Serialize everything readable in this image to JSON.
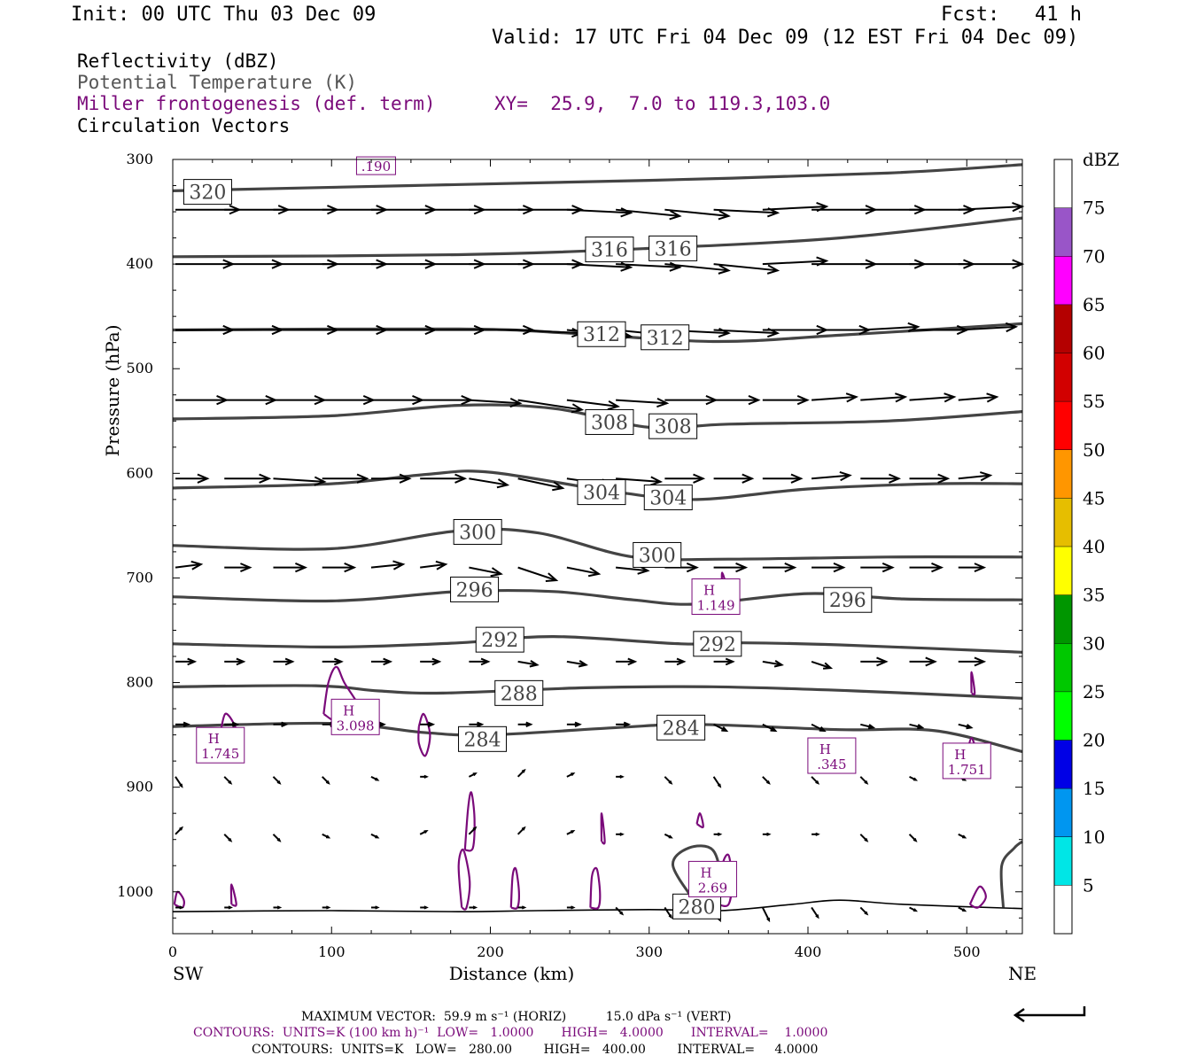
{
  "header": {
    "init": "Init: 00 UTC Thu 03 Dec 09",
    "fcst": "Fcst:   41 h",
    "valid": "Valid: 17 UTC Fri 04 Dec 09 (12 EST Fri 04 Dec 09)"
  },
  "legend": {
    "line1": "Reflectivity (dBZ)",
    "line2": "Potential Temperature (K)",
    "line3": "Miller frontogenesis (def. term)",
    "xy": "XY=  25.9,  7.0 to 119.3,103.0",
    "line4": "Circulation Vectors"
  },
  "colors": {
    "theta": "#444444",
    "fronto": "#7a0a7a",
    "vector": "#000000"
  },
  "chart_data": {
    "type": "line",
    "xlabel": "Distance (km)",
    "ylabel": "Pressure (hPa)",
    "xlim": [
      0,
      535
    ],
    "ylim": [
      1040,
      300
    ],
    "x_ticks": [
      "0",
      "100",
      "200",
      "300",
      "400",
      "500"
    ],
    "y_ticks": [
      "300",
      "400",
      "500",
      "600",
      "700",
      "800",
      "900",
      "1000"
    ],
    "left_end_label": "SW",
    "right_end_label": "NE",
    "theta_contours": [
      {
        "name": "320",
        "points": [
          [
            0,
            330
          ],
          [
            150,
            325
          ],
          [
            300,
            320
          ],
          [
            450,
            313
          ],
          [
            535,
            305
          ]
        ]
      },
      {
        "name": "316",
        "points": [
          [
            0,
            393
          ],
          [
            180,
            391
          ],
          [
            300,
            385
          ],
          [
            420,
            375
          ],
          [
            535,
            356
          ]
        ]
      },
      {
        "name": "312",
        "points": [
          [
            0,
            463
          ],
          [
            180,
            462
          ],
          [
            250,
            466
          ],
          [
            340,
            474
          ],
          [
            420,
            468
          ],
          [
            535,
            457
          ]
        ]
      },
      {
        "name": "308",
        "points": [
          [
            0,
            548
          ],
          [
            100,
            545
          ],
          [
            180,
            535
          ],
          [
            240,
            538
          ],
          [
            300,
            556
          ],
          [
            350,
            553
          ],
          [
            450,
            550
          ],
          [
            535,
            541
          ]
        ]
      },
      {
        "name": "304",
        "points": [
          [
            0,
            614
          ],
          [
            100,
            610
          ],
          [
            160,
            601
          ],
          [
            200,
            599
          ],
          [
            280,
            618
          ],
          [
            330,
            625
          ],
          [
            400,
            615
          ],
          [
            480,
            610
          ],
          [
            535,
            610
          ]
        ]
      },
      {
        "name": "300",
        "points": [
          [
            0,
            669
          ],
          [
            100,
            672
          ],
          [
            180,
            655
          ],
          [
            230,
            657
          ],
          [
            290,
            680
          ],
          [
            350,
            682
          ],
          [
            450,
            680
          ],
          [
            535,
            680
          ]
        ]
      },
      {
        "name": "296",
        "points": [
          [
            0,
            718
          ],
          [
            100,
            722
          ],
          [
            180,
            713
          ],
          [
            240,
            713
          ],
          [
            290,
            721
          ],
          [
            330,
            725
          ],
          [
            400,
            715
          ],
          [
            460,
            720
          ],
          [
            535,
            721
          ]
        ]
      },
      {
        "name": "292",
        "points": [
          [
            0,
            763
          ],
          [
            100,
            766
          ],
          [
            180,
            762
          ],
          [
            240,
            756
          ],
          [
            320,
            763
          ],
          [
            360,
            762
          ],
          [
            420,
            764
          ],
          [
            535,
            771
          ]
        ]
      },
      {
        "name": "288",
        "points": [
          [
            0,
            804
          ],
          [
            90,
            803
          ],
          [
            130,
            808
          ],
          [
            170,
            810
          ],
          [
            260,
            805
          ],
          [
            340,
            804
          ],
          [
            430,
            808
          ],
          [
            535,
            815
          ]
        ]
      },
      {
        "name": "284",
        "points": [
          [
            0,
            842
          ],
          [
            100,
            839
          ],
          [
            160,
            848
          ],
          [
            200,
            850
          ],
          [
            280,
            843
          ],
          [
            330,
            840
          ],
          [
            420,
            845
          ],
          [
            480,
            846
          ],
          [
            535,
            866
          ]
        ]
      },
      {
        "name": "280",
        "points": [
          [
            0,
            1019
          ],
          [
            100,
            1018
          ],
          [
            180,
            1019
          ],
          [
            230,
            1018
          ],
          [
            300,
            1017
          ],
          [
            345,
            1018
          ],
          [
            390,
            1012
          ],
          [
            420,
            1008
          ],
          [
            460,
            1012
          ],
          [
            535,
            1016
          ]
        ]
      }
    ],
    "theta_labels": [
      {
        "text": "320",
        "x": 22,
        "p": 331
      },
      {
        "text": "316",
        "x": 275,
        "p": 386
      },
      {
        "text": "316",
        "x": 315,
        "p": 385
      },
      {
        "text": "312",
        "x": 270,
        "p": 467
      },
      {
        "text": "312",
        "x": 310,
        "p": 470
      },
      {
        "text": "308",
        "x": 275,
        "p": 551
      },
      {
        "text": "308",
        "x": 315,
        "p": 555
      },
      {
        "text": "304",
        "x": 270,
        "p": 618
      },
      {
        "text": "304",
        "x": 312,
        "p": 623
      },
      {
        "text": "300",
        "x": 192,
        "p": 656
      },
      {
        "text": "300",
        "x": 305,
        "p": 678
      },
      {
        "text": "296",
        "x": 190,
        "p": 711
      },
      {
        "text": "296",
        "x": 425,
        "p": 721
      },
      {
        "text": "292",
        "x": 206,
        "p": 759
      },
      {
        "text": "292",
        "x": 343,
        "p": 763
      },
      {
        "text": "288",
        "x": 218,
        "p": 810
      },
      {
        "text": "284",
        "x": 195,
        "p": 854
      },
      {
        "text": "284",
        "x": 320,
        "p": 843
      },
      {
        "text": "280",
        "x": 330,
        "p": 1014
      }
    ],
    "fronto_highs": [
      {
        "label": "H",
        "value": "1.745",
        "x": 30,
        "p": 870
      },
      {
        "label": "H",
        "value": "3.098",
        "x": 115,
        "p": 843
      },
      {
        "label": "H",
        "value": "1.149",
        "x": 342,
        "p": 728
      },
      {
        "label": "H",
        "value": ".345",
        "x": 415,
        "p": 880
      },
      {
        "label": "H",
        "value": "1.751",
        "x": 500,
        "p": 885
      },
      {
        "label": "H",
        "value": "2.69",
        "x": 340,
        "p": 998
      }
    ],
    "fronto_top_label": ".190",
    "reflectivity_scale": {
      "unit": "dBZ",
      "levels": [
        "5",
        "10",
        "15",
        "20",
        "25",
        "30",
        "35",
        "40",
        "45",
        "50",
        "55",
        "60",
        "65",
        "70",
        "75"
      ],
      "colors": [
        "#ffffff",
        "#00e6e6",
        "#0096f0",
        "#0000e6",
        "#00ff00",
        "#00c800",
        "#009600",
        "#ffff00",
        "#e6be00",
        "#ff9600",
        "#ff0000",
        "#d20000",
        "#b40000",
        "#ff00ff",
        "#9955c8",
        "#ffffff"
      ]
    },
    "vector_rows": [
      {
        "p": 348,
        "u": [
          1,
          1,
          1,
          1,
          1,
          1,
          1,
          1,
          1,
          1,
          1,
          1,
          1,
          1,
          1,
          1,
          1
        ],
        "w": [
          0,
          0,
          0,
          0,
          0,
          0,
          0,
          0,
          0.05,
          0.1,
          0.1,
          0.05,
          -0.05,
          0,
          0,
          0,
          -0.05
        ]
      },
      {
        "p": 400,
        "u": [
          0.9,
          0.9,
          1,
          1,
          1,
          1,
          1,
          1,
          1,
          1,
          1,
          1,
          1,
          1,
          1,
          1,
          1
        ],
        "w": [
          0,
          0,
          0,
          0,
          0,
          0,
          0,
          0,
          0.05,
          0.05,
          0.1,
          0.1,
          -0.05,
          0,
          0,
          0,
          0
        ]
      },
      {
        "p": 463,
        "u": [
          0.9,
          0.9,
          1,
          1,
          1,
          1,
          1,
          1,
          1,
          1,
          1,
          1,
          1,
          0.9,
          0.9,
          0.9,
          0.9
        ],
        "w": [
          0,
          0,
          0,
          0,
          0,
          0,
          0,
          0.05,
          0.1,
          0.1,
          0.05,
          0.05,
          0,
          0,
          -0.05,
          0,
          -0.05
        ]
      },
      {
        "p": 530,
        "u": [
          0.8,
          0.8,
          0.8,
          0.8,
          0.8,
          0.8,
          0.8,
          1,
          0.8,
          0.8,
          0.8,
          0.7,
          0.7,
          0.7,
          0.7,
          0.7,
          0.6
        ],
        "w": [
          0,
          0,
          0,
          0,
          0,
          0,
          0.05,
          0.15,
          0.1,
          0.05,
          0,
          0,
          0,
          -0.05,
          -0.05,
          -0.05,
          -0.05
        ]
      },
      {
        "p": 605,
        "u": [
          0.5,
          0.7,
          0.8,
          0.7,
          0.6,
          0.7,
          0.6,
          0.7,
          0.7,
          0.7,
          0.6,
          0.6,
          0.6,
          0.6,
          0.6,
          0.6,
          0.5
        ],
        "w": [
          0,
          0,
          0.05,
          0,
          0,
          0,
          0.1,
          0.15,
          0.1,
          0.05,
          0,
          0,
          0,
          -0.05,
          0,
          0,
          -0.05
        ]
      },
      {
        "p": 690,
        "u": [
          0.4,
          0.4,
          0.5,
          0.5,
          0.5,
          0.4,
          0.5,
          0.6,
          0.5,
          0.5,
          0.5,
          0.5,
          0.5,
          0.5,
          0.5,
          0.5,
          0.4
        ],
        "w": [
          -0.05,
          0,
          0,
          0,
          -0.05,
          -0.05,
          0.1,
          0.2,
          0.1,
          0.05,
          0,
          0,
          0,
          0,
          0,
          0,
          0
        ]
      },
      {
        "p": 780,
        "u": [
          0.3,
          0.3,
          0.3,
          0.3,
          0.3,
          0.3,
          0.3,
          0.3,
          0.3,
          0.3,
          0.3,
          0.3,
          0.3,
          0.3,
          0.4,
          0.4,
          0.4
        ],
        "w": [
          0,
          0,
          0,
          0,
          0,
          0,
          0,
          0.05,
          0.05,
          0,
          0,
          0,
          0.05,
          0.1,
          0,
          0,
          0
        ]
      },
      {
        "p": 840,
        "u": [
          0.2,
          0.2,
          0.2,
          0.2,
          0.2,
          0.2,
          0.2,
          0.2,
          0.2,
          0.2,
          0.2,
          0.2,
          0.2,
          0.2,
          0.2,
          0.2,
          0.2
        ],
        "w": [
          0,
          0,
          0,
          0,
          0,
          0,
          0,
          0,
          0,
          0,
          0,
          0.1,
          0.1,
          0.1,
          0.05,
          0.05,
          0.05
        ]
      },
      {
        "p": 890,
        "u": [
          0.1,
          0.1,
          0.1,
          0.1,
          0.1,
          0.1,
          0.1,
          0.1,
          0.1,
          0.1,
          0.1,
          0.1,
          0.1,
          0.1,
          0.1,
          0.1,
          0.1
        ],
        "w": [
          0.15,
          0.1,
          0.1,
          0.1,
          0.05,
          0,
          -0.05,
          -0.1,
          -0.05,
          0,
          0.1,
          0.15,
          0.1,
          0.1,
          0.1,
          0.05,
          0.05
        ]
      },
      {
        "p": 945,
        "u": [
          0.1,
          0.1,
          0.1,
          0.1,
          0.1,
          0.1,
          0.1,
          0.1,
          0.1,
          0.1,
          0.1,
          0.1,
          0.1,
          0.1,
          0.1,
          0.1,
          0.1
        ],
        "w": [
          -0.1,
          0.1,
          0.1,
          0.05,
          0.05,
          -0.05,
          -0.1,
          -0.1,
          -0.05,
          0,
          0.05,
          0,
          0,
          0,
          0.1,
          0.1,
          0.05
        ]
      },
      {
        "p": 1015,
        "u": [
          0.1,
          0.1,
          0.1,
          0.1,
          0.1,
          0.1,
          0.1,
          0.1,
          0.1,
          0.1,
          0.1,
          0.1,
          0.1,
          0.1,
          0.1,
          0.1,
          0.1
        ],
        "w": [
          0,
          0,
          0,
          0,
          0,
          0,
          0,
          0,
          0,
          0.1,
          0.15,
          0.2,
          0.2,
          0.15,
          0.1,
          0.05,
          0.05
        ]
      }
    ]
  },
  "footer": {
    "max_vector": "MAXIMUM VECTOR:  59.9 m s⁻¹ (HORIZ)          15.0 dPa s⁻¹ (VERT)",
    "contours1": "CONTOURS:  UNITS=K (100 km h)⁻¹  LOW=   1.0000       HIGH=   4.0000       INTERVAL=    1.0000",
    "contours2": "CONTOURS:  UNITS=K   LOW=   280.00        HIGH=   400.00        INTERVAL=     4.0000"
  }
}
